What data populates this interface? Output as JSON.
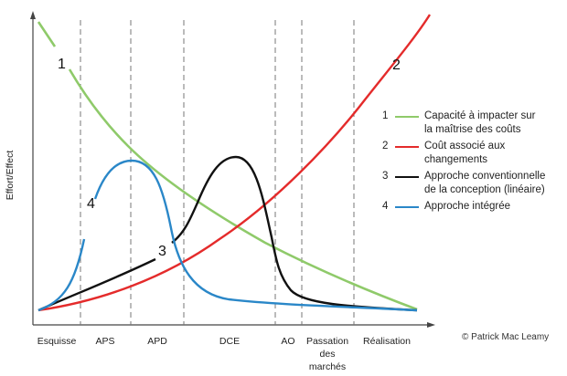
{
  "axis": {
    "ylabel": "Effort/Effect"
  },
  "phases": [
    {
      "lines": [
        "Esquisse"
      ]
    },
    {
      "lines": [
        "APS"
      ]
    },
    {
      "lines": [
        "APD"
      ]
    },
    {
      "lines": [
        "DCE"
      ]
    },
    {
      "lines": [
        "AO"
      ]
    },
    {
      "lines": [
        "Passation",
        "des",
        "marchés"
      ]
    },
    {
      "lines": [
        "Réalisation"
      ]
    }
  ],
  "curves": [
    {
      "id": "1",
      "number": "1",
      "color": "#8fca6a",
      "label_lines": [
        "Capacité à impacter sur",
        "la maîtrise des coûts"
      ]
    },
    {
      "id": "2",
      "number": "2",
      "color": "#e42b2b",
      "label_lines": [
        "Coût associé aux",
        "changements"
      ]
    },
    {
      "id": "3",
      "number": "3",
      "color": "#111111",
      "label_lines": [
        "Approche conventionnelle",
        "de la conception (linéaire)"
      ]
    },
    {
      "id": "4",
      "number": "4",
      "color": "#2a87c8",
      "label_lines": [
        "Approche intégrée"
      ]
    }
  ],
  "copyright": "© Patrick Mac Leamy"
}
